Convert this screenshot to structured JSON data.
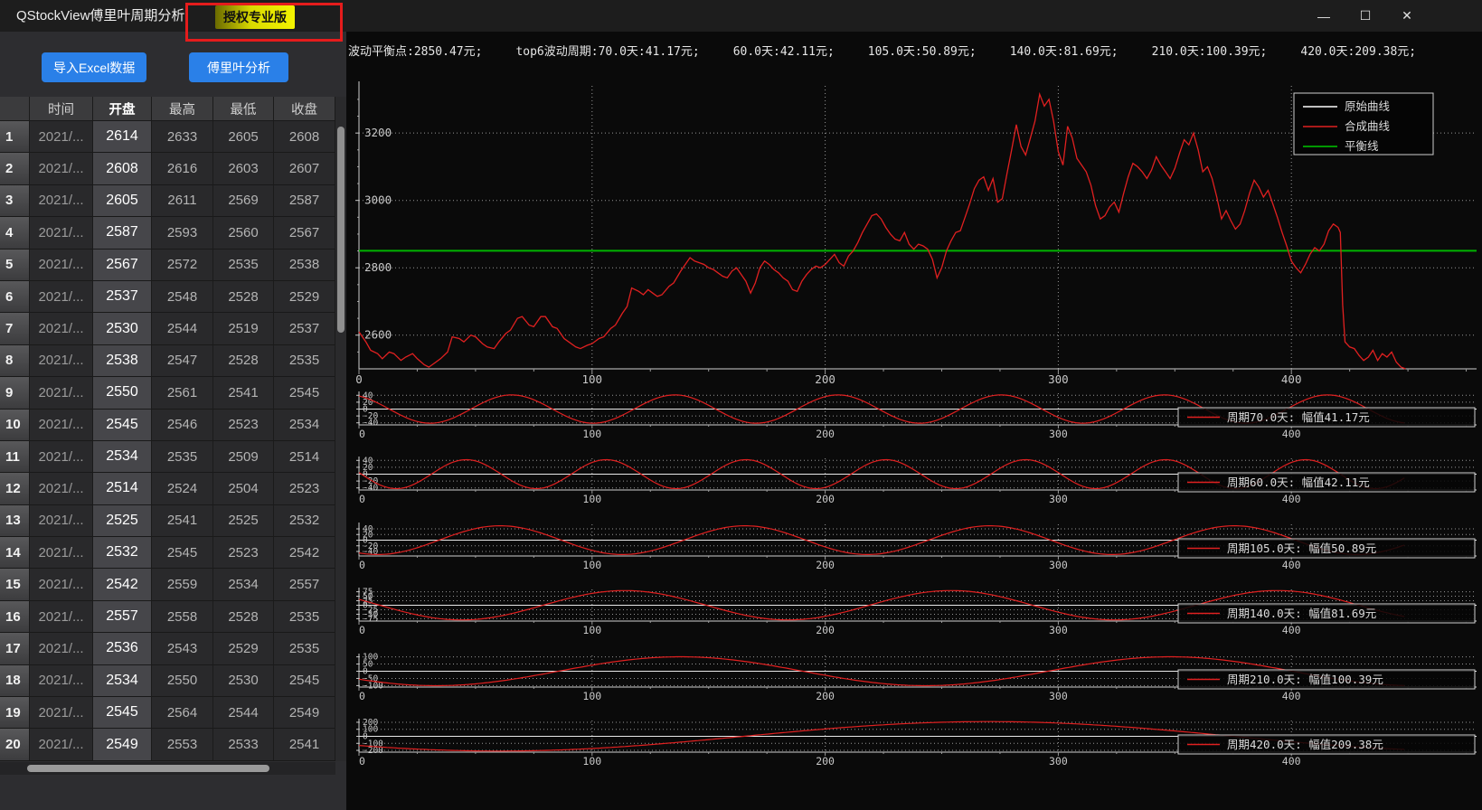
{
  "window": {
    "title": "QStockView傅里叶周期分析",
    "license_badge": "授权专业版",
    "controls": {
      "minimize": "—",
      "maximize": "☐",
      "close": "✕"
    }
  },
  "sidebar": {
    "import_button": "导入Excel数据",
    "analyze_button": "傅里叶分析"
  },
  "table": {
    "headers": [
      "",
      "时间",
      "开盘",
      "最高",
      "最低",
      "收盘"
    ],
    "selected_column": "开盘",
    "rows": [
      {
        "n": 1,
        "time": "2021/...",
        "open": 2614,
        "high": 2633,
        "low": 2605,
        "close": 2608
      },
      {
        "n": 2,
        "time": "2021/...",
        "open": 2608,
        "high": 2616,
        "low": 2603,
        "close": 2607
      },
      {
        "n": 3,
        "time": "2021/...",
        "open": 2605,
        "high": 2611,
        "low": 2569,
        "close": 2587
      },
      {
        "n": 4,
        "time": "2021/...",
        "open": 2587,
        "high": 2593,
        "low": 2560,
        "close": 2567
      },
      {
        "n": 5,
        "time": "2021/...",
        "open": 2567,
        "high": 2572,
        "low": 2535,
        "close": 2538
      },
      {
        "n": 6,
        "time": "2021/...",
        "open": 2537,
        "high": 2548,
        "low": 2528,
        "close": 2529
      },
      {
        "n": 7,
        "time": "2021/...",
        "open": 2530,
        "high": 2544,
        "low": 2519,
        "close": 2537
      },
      {
        "n": 8,
        "time": "2021/...",
        "open": 2538,
        "high": 2547,
        "low": 2528,
        "close": 2535
      },
      {
        "n": 9,
        "time": "2021/...",
        "open": 2550,
        "high": 2561,
        "low": 2541,
        "close": 2545
      },
      {
        "n": 10,
        "time": "2021/...",
        "open": 2545,
        "high": 2546,
        "low": 2523,
        "close": 2534
      },
      {
        "n": 11,
        "time": "2021/...",
        "open": 2534,
        "high": 2535,
        "low": 2509,
        "close": 2514
      },
      {
        "n": 12,
        "time": "2021/...",
        "open": 2514,
        "high": 2524,
        "low": 2504,
        "close": 2523
      },
      {
        "n": 13,
        "time": "2021/...",
        "open": 2525,
        "high": 2541,
        "low": 2525,
        "close": 2532
      },
      {
        "n": 14,
        "time": "2021/...",
        "open": 2532,
        "high": 2545,
        "low": 2523,
        "close": 2542
      },
      {
        "n": 15,
        "time": "2021/...",
        "open": 2542,
        "high": 2559,
        "low": 2534,
        "close": 2557
      },
      {
        "n": 16,
        "time": "2021/...",
        "open": 2557,
        "high": 2558,
        "low": 2528,
        "close": 2535
      },
      {
        "n": 17,
        "time": "2021/...",
        "open": 2536,
        "high": 2543,
        "low": 2529,
        "close": 2535
      },
      {
        "n": 18,
        "time": "2021/...",
        "open": 2534,
        "high": 2550,
        "low": 2530,
        "close": 2545
      },
      {
        "n": 19,
        "time": "2021/...",
        "open": 2545,
        "high": 2564,
        "low": 2544,
        "close": 2549
      },
      {
        "n": 20,
        "time": "2021/...",
        "open": 2549,
        "high": 2553,
        "low": 2533,
        "close": 2541
      }
    ]
  },
  "stats_bar": {
    "items": [
      "波动平衡点:2850.47元;",
      "top6波动周期:70.0天:41.17元;",
      "60.0天:42.11元;",
      "105.0天:50.89元;",
      "140.0天:81.69元;",
      "210.0天:100.39元;",
      "420.0天:209.38元;"
    ]
  },
  "chart_data": {
    "type": "line",
    "main": {
      "legend": [
        {
          "label": "原始曲线",
          "color": "#ffffff"
        },
        {
          "label": "合成曲线",
          "color": "#e02020"
        },
        {
          "label": "平衡线",
          "color": "#00c800"
        }
      ],
      "balance_value": 2850.47,
      "x_ticks": [
        0,
        100,
        200,
        300,
        400
      ],
      "y_ticks": [
        2600,
        2800,
        3000,
        3200
      ],
      "xlim": [
        0,
        479
      ],
      "ylim": [
        2500,
        3340
      ],
      "series_color": "#e02020",
      "balance_color": "#00b400",
      "points": [
        0,
        2610,
        3,
        2580,
        5,
        2555,
        8,
        2545,
        10,
        2530,
        13,
        2550,
        15,
        2545,
        18,
        2525,
        20,
        2535,
        23,
        2545,
        25,
        2530,
        28,
        2512,
        30,
        2505,
        33,
        2520,
        35,
        2530,
        38,
        2550,
        40,
        2595,
        43,
        2590,
        45,
        2580,
        48,
        2600,
        50,
        2595,
        53,
        2575,
        55,
        2565,
        58,
        2560,
        60,
        2580,
        63,
        2605,
        65,
        2615,
        68,
        2650,
        70,
        2655,
        73,
        2630,
        75,
        2625,
        78,
        2655,
        80,
        2655,
        83,
        2625,
        85,
        2620,
        88,
        2590,
        90,
        2580,
        93,
        2565,
        95,
        2560,
        98,
        2570,
        100,
        2575,
        103,
        2590,
        105,
        2595,
        108,
        2620,
        110,
        2630,
        113,
        2665,
        115,
        2685,
        117,
        2740,
        120,
        2730,
        122,
        2720,
        124,
        2735,
        126,
        2725,
        128,
        2715,
        130,
        2720,
        133,
        2745,
        135,
        2755,
        138,
        2790,
        140,
        2810,
        142,
        2830,
        144,
        2820,
        146,
        2815,
        148,
        2810,
        150,
        2800,
        152,
        2795,
        154,
        2785,
        156,
        2775,
        158,
        2770,
        160,
        2790,
        162,
        2800,
        164,
        2780,
        166,
        2760,
        168,
        2725,
        170,
        2755,
        172,
        2800,
        174,
        2820,
        176,
        2810,
        178,
        2795,
        180,
        2785,
        182,
        2770,
        184,
        2760,
        186,
        2735,
        188,
        2730,
        190,
        2760,
        192,
        2780,
        194,
        2795,
        196,
        2805,
        198,
        2800,
        200,
        2810,
        202,
        2825,
        204,
        2840,
        206,
        2815,
        208,
        2805,
        210,
        2835,
        212,
        2850,
        214,
        2875,
        216,
        2905,
        218,
        2930,
        220,
        2955,
        222,
        2960,
        224,
        2945,
        226,
        2920,
        228,
        2900,
        230,
        2885,
        232,
        2880,
        234,
        2905,
        236,
        2870,
        238,
        2855,
        240,
        2870,
        242,
        2865,
        244,
        2855,
        246,
        2825,
        248,
        2770,
        250,
        2800,
        252,
        2850,
        254,
        2880,
        256,
        2905,
        258,
        2910,
        260,
        2950,
        262,
        2990,
        264,
        3035,
        266,
        3060,
        268,
        3070,
        270,
        3030,
        272,
        3065,
        274,
        2995,
        276,
        3005,
        278,
        3080,
        280,
        3150,
        282,
        3225,
        284,
        3160,
        286,
        3135,
        288,
        3185,
        290,
        3235,
        292,
        3315,
        294,
        3280,
        296,
        3300,
        298,
        3235,
        300,
        3145,
        302,
        3105,
        304,
        3220,
        306,
        3185,
        308,
        3125,
        310,
        3105,
        312,
        3085,
        314,
        3045,
        316,
        2985,
        318,
        2945,
        320,
        2955,
        322,
        2980,
        324,
        2995,
        326,
        2965,
        328,
        3020,
        330,
        3070,
        332,
        3110,
        334,
        3100,
        336,
        3085,
        338,
        3065,
        340,
        3090,
        342,
        3130,
        344,
        3105,
        346,
        3085,
        348,
        3065,
        350,
        3095,
        352,
        3140,
        354,
        3180,
        356,
        3165,
        358,
        3200,
        360,
        3150,
        362,
        3085,
        364,
        3100,
        366,
        3065,
        368,
        3010,
        370,
        2945,
        372,
        2970,
        374,
        2940,
        376,
        2915,
        378,
        2930,
        380,
        2970,
        382,
        3020,
        384,
        3060,
        386,
        3040,
        388,
        3010,
        390,
        3030,
        392,
        2990,
        394,
        2950,
        396,
        2905,
        398,
        2865,
        400,
        2820,
        402,
        2800,
        404,
        2785,
        406,
        2810,
        408,
        2840,
        410,
        2860,
        412,
        2850,
        414,
        2870,
        416,
        2910,
        418,
        2930,
        420,
        2920,
        421,
        2905,
        422,
        2690,
        423,
        2580,
        425,
        2565,
        427,
        2560,
        429,
        2540,
        431,
        2525,
        433,
        2535,
        435,
        2555,
        437,
        2525,
        439,
        2545,
        441,
        2535,
        443,
        2550,
        445,
        2520,
        447,
        2505,
        449,
        2500
      ]
    },
    "components": [
      {
        "label": "周期70.0天: 幅值41.17元",
        "period": 70,
        "amplitude": 41.17,
        "sign": -1,
        "x0": 13,
        "y_ticks": [
          40,
          20,
          0,
          -20,
          -40
        ],
        "ylim": 46
      },
      {
        "label": "周期60.0天: 幅值42.11元",
        "period": 60,
        "amplitude": 42.11,
        "sign": 1,
        "x0": 31,
        "y_ticks": [
          40,
          20,
          0,
          -20,
          -40
        ],
        "ylim": 46
      },
      {
        "label": "周期105.0天: 幅值50.89元",
        "period": 105,
        "amplitude": 50.89,
        "sign": -1,
        "x0": -18.2,
        "y_ticks": [
          40,
          20,
          0,
          -20,
          -40
        ],
        "ylim": 56
      },
      {
        "label": "周期140.0天: 幅值81.69元",
        "period": 140,
        "amplitude": 81.69,
        "sign": -1,
        "x0": 9,
        "y_ticks": [
          75,
          50,
          25,
          0,
          -25,
          -50,
          -75
        ],
        "ylim": 88
      },
      {
        "label": "周期210.0天: 幅值100.39元",
        "period": 210,
        "amplitude": 100.39,
        "sign": 1,
        "x0": 85.5,
        "y_ticks": [
          100,
          50,
          0,
          -50,
          -100
        ],
        "ylim": 110
      },
      {
        "label": "周期420.0天: 幅值209.38元",
        "period": 420,
        "amplitude": 209.38,
        "sign": -1,
        "x0": -45,
        "y_ticks": [
          200,
          100,
          0,
          -100,
          -200
        ],
        "ylim": 225
      }
    ],
    "x_axis_labels": [
      0,
      100,
      200,
      300,
      400
    ]
  }
}
